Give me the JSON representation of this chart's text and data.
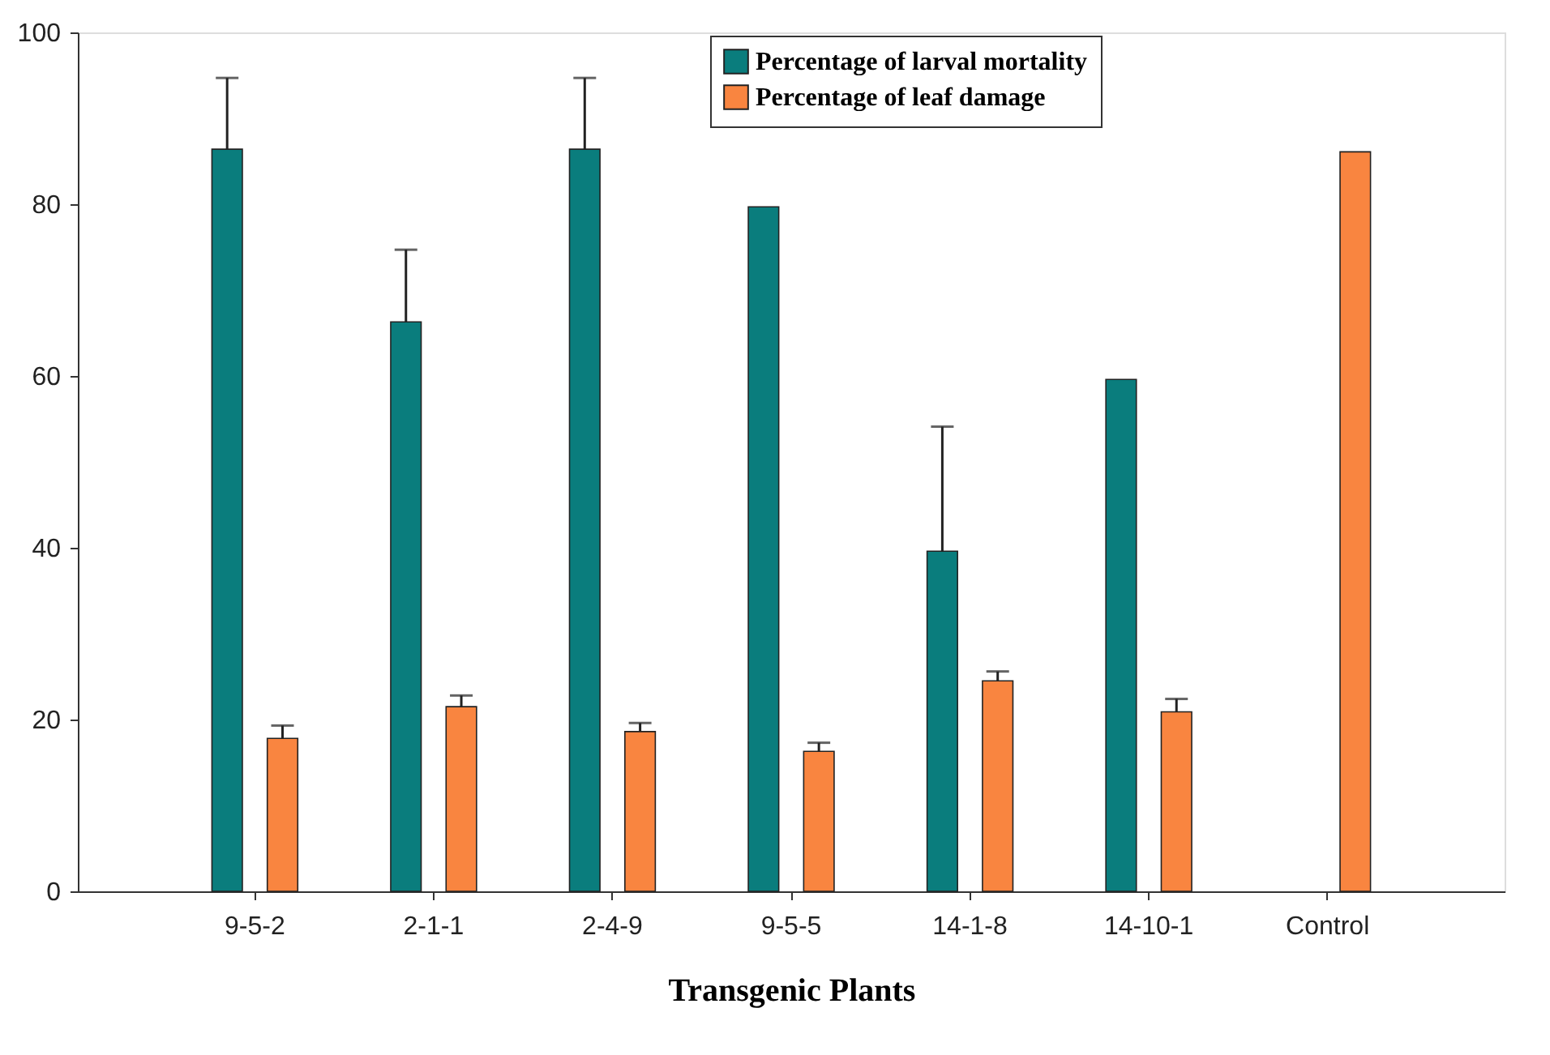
{
  "chart_data": {
    "type": "bar",
    "xlabel": "Transgenic Plants",
    "categories": [
      "9-5-2",
      "2-1-1",
      "2-4-9",
      "9-5-5",
      "14-1-8",
      "14-10-1",
      "Control"
    ],
    "series": [
      {
        "name": "Percentage of larval mortality",
        "color": "#0a7d7d",
        "values": [
          86.4,
          66.3,
          86.4,
          79.7,
          39.6,
          59.6,
          null
        ],
        "errors": [
          [
            86.4,
            94.7
          ],
          [
            66.3,
            74.7
          ],
          [
            86.4,
            94.7
          ],
          null,
          [
            39.6,
            54.1
          ],
          null,
          null
        ]
      },
      {
        "name": "Percentage of leaf damage",
        "color": "#f98540",
        "values": [
          17.8,
          21.5,
          18.6,
          16.3,
          24.5,
          20.9,
          86.1
        ],
        "errors": [
          [
            17.8,
            19.3
          ],
          [
            21.5,
            22.8
          ],
          [
            18.6,
            19.6
          ],
          [
            16.3,
            17.3
          ],
          [
            24.5,
            25.6
          ],
          [
            20.9,
            22.4
          ],
          null
        ]
      }
    ],
    "ylim": [
      0,
      100
    ],
    "yticks": [
      0,
      20,
      40,
      60,
      80,
      100
    ],
    "grid": false,
    "legend": "top right"
  }
}
